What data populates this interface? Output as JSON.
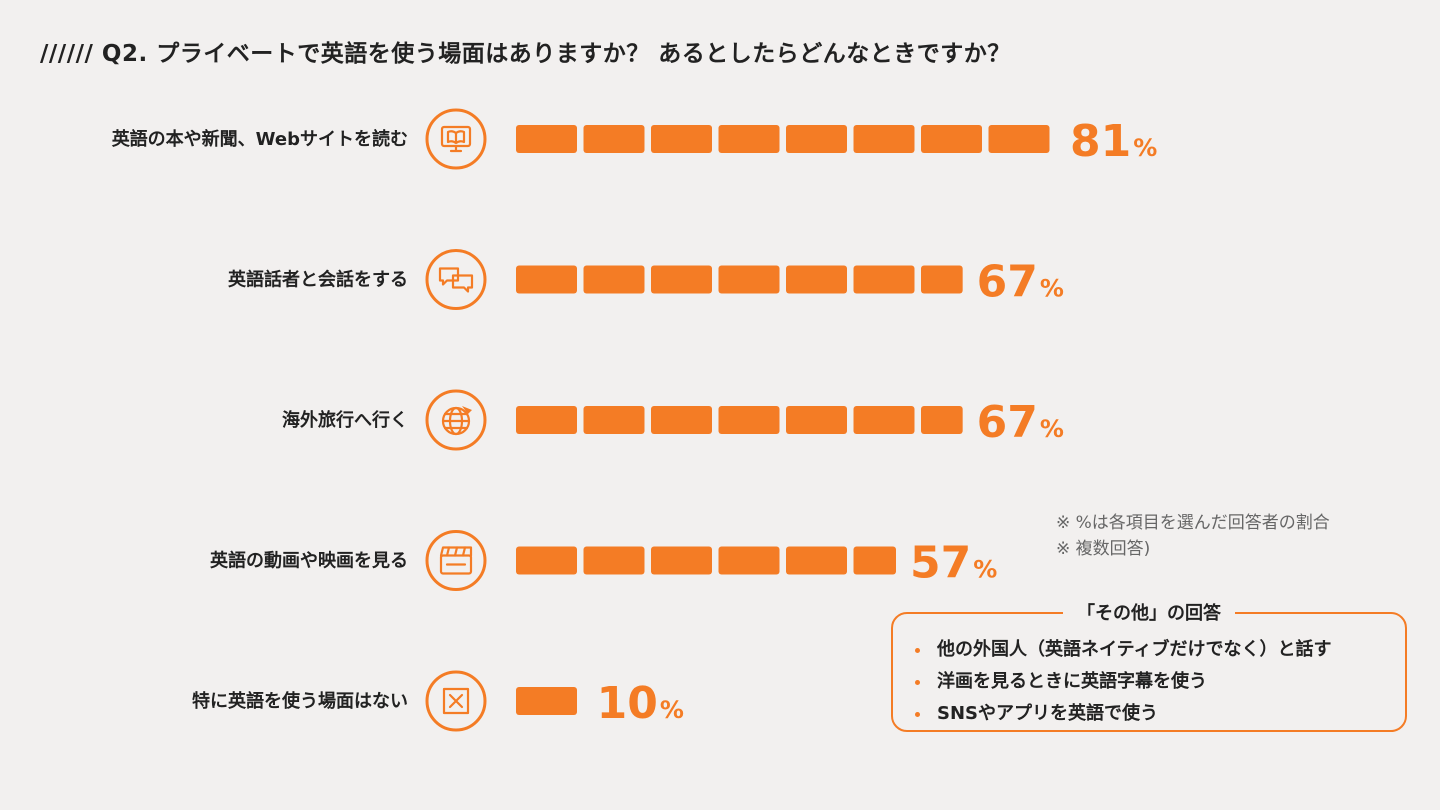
{
  "title": "////// Q2. プライベートで英語を使う場面はありますか？ あるとしたらどんなときですか？",
  "colors": {
    "accent": "#f47c25",
    "background": "#f2f0ef",
    "text": "#222222",
    "note": "#666666"
  },
  "note_lines": [
    "※ %は各項目を選んだ回答者の割合",
    "※ 複数回答)"
  ],
  "other_answers": {
    "title": "「その他」の回答",
    "items": [
      "他の外国人（英語ネイティブだけでなく）と話す",
      "洋画を見るときに英語字幕を使う",
      "SNSやアプリを英語で使う"
    ]
  },
  "chart_data": {
    "type": "bar",
    "orientation": "horizontal",
    "unit": "%",
    "xlim": [
      0,
      100
    ],
    "categories": [
      "英語の本や新聞、Webサイトを読む",
      "英語話者と会話をする",
      "海外旅行へ行く",
      "英語の動画や映画を見る",
      "特に英語を使う場面はない"
    ],
    "icons": [
      "monitor-book-icon",
      "chat-bubbles-icon",
      "globe-plane-icon",
      "clapperboard-icon",
      "x-box-icon"
    ],
    "values": [
      81,
      67,
      67,
      57,
      10
    ]
  }
}
